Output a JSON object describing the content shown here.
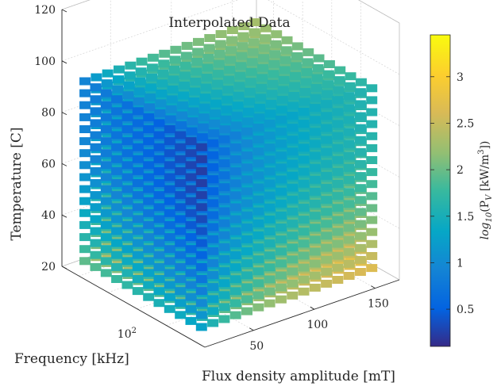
{
  "chart_data": {
    "type": "scatter3d",
    "title": "Interpolated Data",
    "xlabel": "Flux density amplitude [mT]",
    "ylabel": "Frequency [kHz]",
    "zlabel": "Temperature [C]",
    "x_ticks": [
      "50",
      "100",
      "150"
    ],
    "y_ticks": [
      "10"
    ],
    "y_tick_exponent": "2",
    "z_ticks": [
      "20",
      "40",
      "60",
      "80",
      "100",
      "120"
    ],
    "xlim": [
      10,
      170
    ],
    "ylim": [
      20,
      600
    ],
    "zlim": [
      20,
      120
    ],
    "y_scale": "log",
    "grid": true,
    "colorbar": {
      "label_prefix": "log",
      "label_sub": "10",
      "label_mid": "(P",
      "label_sub2": "V",
      "label_units": " [kW/m",
      "label_sup": "3",
      "label_end": "])",
      "ticks": [
        "0.5",
        "1",
        "1.5",
        "2",
        "2.5",
        "3"
      ],
      "range": [
        0.1,
        3.45
      ],
      "colormap": "parula"
    },
    "grid_samples": {
      "x": [
        15,
        35,
        55,
        75,
        95,
        115,
        135,
        155
      ],
      "y_kHz": [
        25,
        50,
        100,
        200,
        400
      ],
      "z": [
        25,
        35,
        45,
        55,
        65,
        75,
        85,
        95
      ]
    }
  }
}
